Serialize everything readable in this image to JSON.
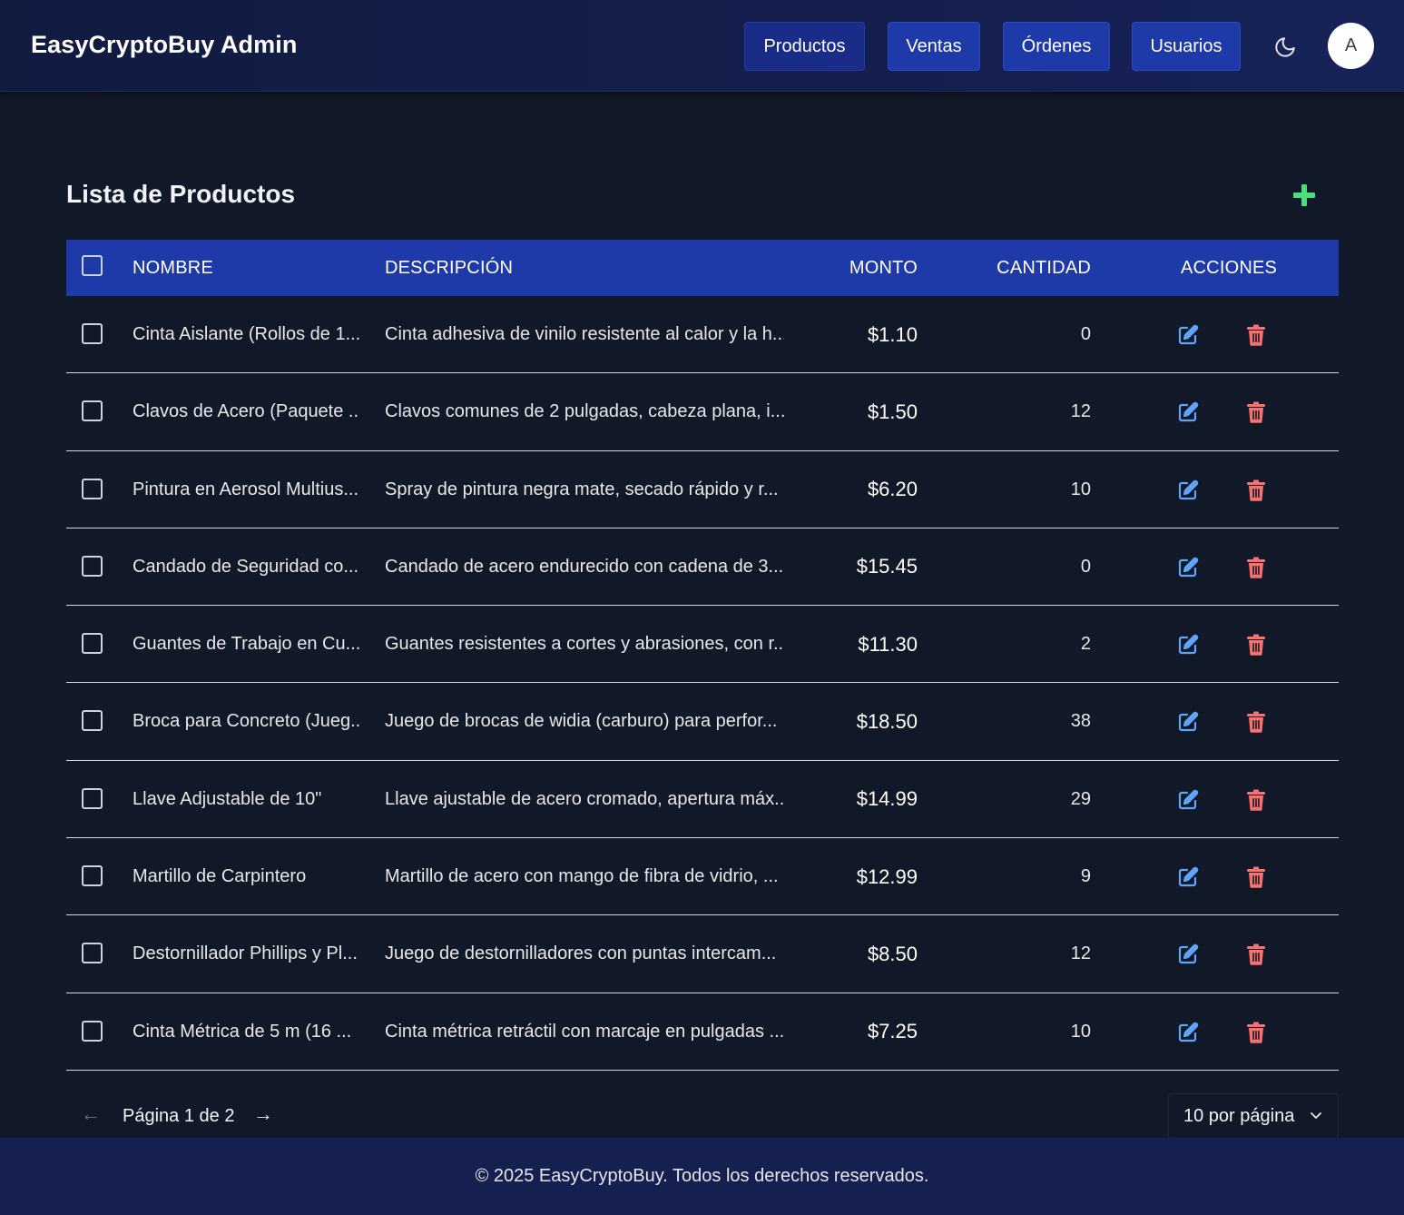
{
  "header": {
    "brand": "EasyCryptoBuy Admin",
    "nav": [
      "Productos",
      "Ventas",
      "Órdenes",
      "Usuarios"
    ],
    "active_nav": "Productos",
    "theme_icon": "moon-icon",
    "avatar_initial": "A"
  },
  "main": {
    "title": "Lista de Productos",
    "add_icon": "plus-icon",
    "columns": [
      "NOMBRE",
      "DESCRIPCIÓN",
      "MONTO",
      "CANTIDAD",
      "ACCIONES"
    ],
    "rows": [
      {
        "name": "Cinta Aislante (Rollos de 1...",
        "description": "Cinta adhesiva de vinilo resistente al calor y la h...",
        "price": "$1.10",
        "qty": "0"
      },
      {
        "name": "Clavos de Acero (Paquete ...",
        "description": "Clavos comunes de 2 pulgadas, cabeza plana, i...",
        "price": "$1.50",
        "qty": "12"
      },
      {
        "name": "Pintura en Aerosol Multius...",
        "description": "Spray de pintura negra mate, secado rápido y r...",
        "price": "$6.20",
        "qty": "10"
      },
      {
        "name": "Candado de Seguridad co...",
        "description": "Candado de acero endurecido con cadena de 3...",
        "price": "$15.45",
        "qty": "0"
      },
      {
        "name": "Guantes de Trabajo en Cu...",
        "description": "Guantes resistentes a cortes y abrasiones, con r...",
        "price": "$11.30",
        "qty": "2"
      },
      {
        "name": "Broca para Concreto (Jueg...",
        "description": "Juego de brocas de widia (carburo) para perfor...",
        "price": "$18.50",
        "qty": "38"
      },
      {
        "name": "Llave Adjustable de 10\"",
        "description": "Llave ajustable de acero cromado, apertura máx...",
        "price": "$14.99",
        "qty": "29"
      },
      {
        "name": "Martillo de Carpintero",
        "description": "Martillo de acero con mango de fibra de vidrio, ...",
        "price": "$12.99",
        "qty": "9"
      },
      {
        "name": "Destornillador Phillips y Pl...",
        "description": "Juego de destornilladores con puntas intercam...",
        "price": "$8.50",
        "qty": "12"
      },
      {
        "name": "Cinta Métrica de 5 m (16 ...",
        "description": "Cinta métrica retráctil con marcaje en pulgadas ...",
        "price": "$7.25",
        "qty": "10"
      }
    ],
    "row_icons": {
      "edit": "edit-icon",
      "delete": "trash-icon"
    }
  },
  "pagination": {
    "prev": "←",
    "label": "Página 1 de 2",
    "next": "→",
    "per_page": "10 por página"
  },
  "footer": {
    "text": "© 2025 EasyCryptoBuy. Todos los derechos reservados."
  },
  "colors": {
    "header_bg": "#152050",
    "primary": "#1e3aa8",
    "page_bg": "#111827",
    "add": "#4ade80",
    "edit": "#60a5fa",
    "delete": "#f87171"
  }
}
